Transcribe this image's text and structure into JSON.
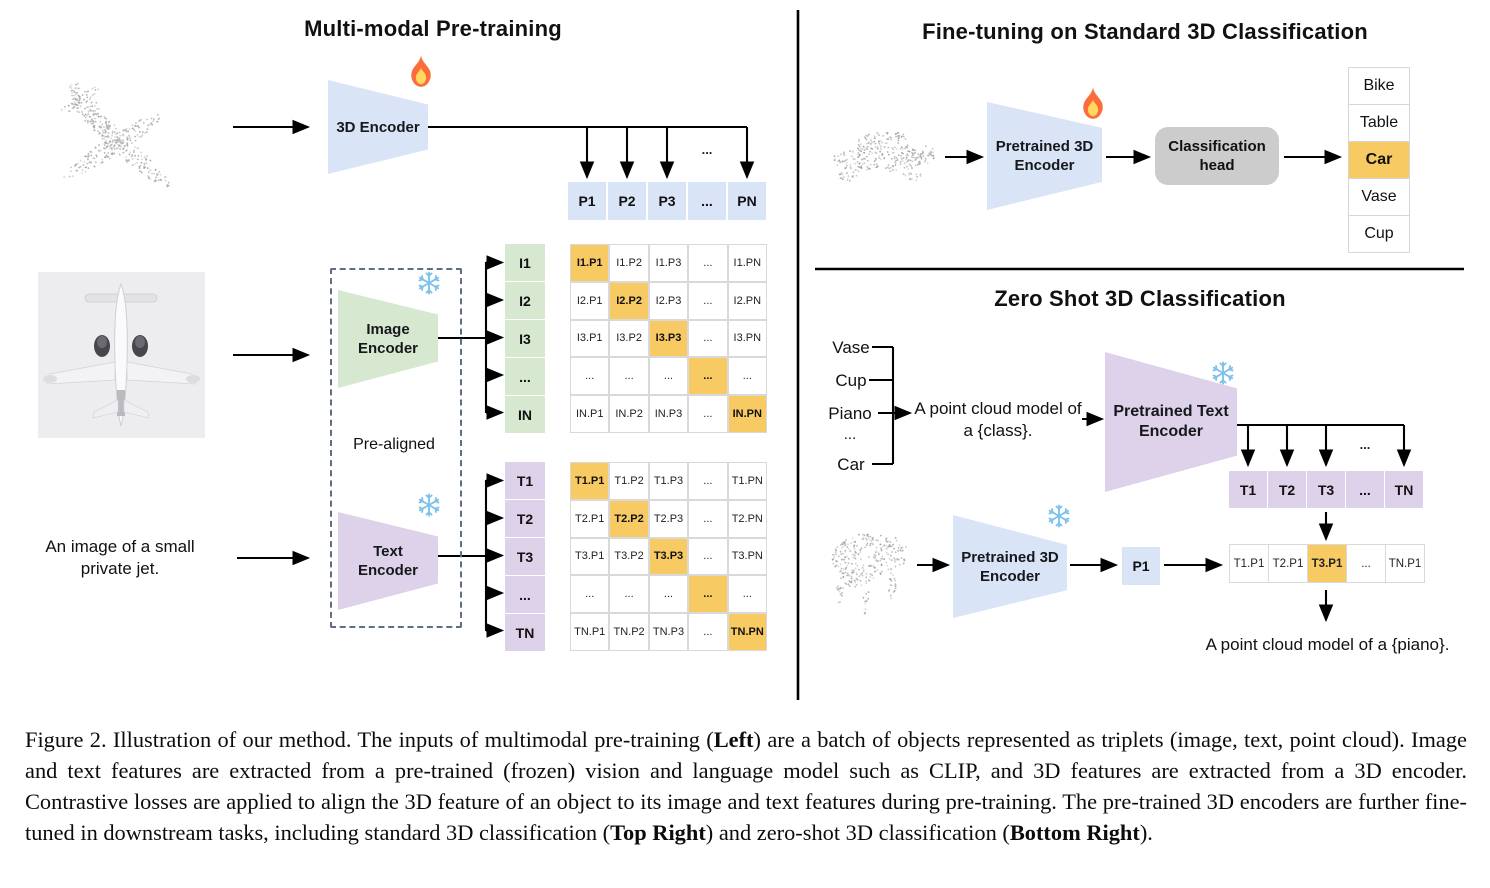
{
  "figure": {
    "left": {
      "title": "Multi-modal Pre-training",
      "point_cloud_input": "airplane point cloud",
      "image_input": "small private jet photo",
      "text_input_lines": [
        "An image of a small",
        "private jet."
      ],
      "encoder_3d": "3D Encoder",
      "image_encoder_lines": [
        "Image",
        "Encoder"
      ],
      "text_encoder_lines": [
        "Text",
        "Encoder"
      ],
      "pre_aligned": "Pre-aligned",
      "ellipsis": "...",
      "p_row": [
        "P1",
        "P2",
        "P3",
        "...",
        "PN"
      ],
      "image_rows": [
        "I1",
        "I2",
        "I3",
        "...",
        "IN"
      ],
      "text_rows": [
        "T1",
        "T2",
        "T3",
        "...",
        "TN"
      ],
      "image_matrix": [
        [
          "I1.P1",
          "I1.P2",
          "I1.P3",
          "...",
          "I1.PN"
        ],
        [
          "I2.P1",
          "I2.P2",
          "I2.P3",
          "...",
          "I2.PN"
        ],
        [
          "I3.P1",
          "I3.P2",
          "I3.P3",
          "...",
          "I3.PN"
        ],
        [
          "...",
          "...",
          "...",
          "...",
          "..."
        ],
        [
          "IN.P1",
          "IN.P2",
          "IN.P3",
          "...",
          "IN.PN"
        ]
      ],
      "text_matrix": [
        [
          "T1.P1",
          "T1.P2",
          "T1.P3",
          "...",
          "T1.PN"
        ],
        [
          "T2.P1",
          "T2.P2",
          "T2.P3",
          "...",
          "T2.PN"
        ],
        [
          "T3.P1",
          "T3.P2",
          "T3.P3",
          "...",
          "T3.PN"
        ],
        [
          "...",
          "...",
          "...",
          "...",
          "..."
        ],
        [
          "TN.P1",
          "TN.P2",
          "TN.P3",
          "...",
          "TN.PN"
        ]
      ]
    },
    "top_right": {
      "title": "Fine-tuning on Standard 3D Classification",
      "point_cloud_input": "car point cloud",
      "encoder_lines": [
        "Pretrained 3D",
        "Encoder"
      ],
      "head_lines": [
        "Classification",
        "head"
      ],
      "classes": [
        "Bike",
        "Table",
        "Car",
        "Vase",
        "Cup"
      ],
      "highlight_index": 2,
      "highlighted_class": "Car"
    },
    "bottom_right": {
      "title": "Zero Shot 3D Classification",
      "classes": [
        "Vase",
        "Cup",
        "Piano",
        "...",
        "Car"
      ],
      "prompt_lines": [
        "A point cloud model of",
        "a {class}."
      ],
      "text_encoder_lines": [
        "Pretrained Text",
        "Encoder"
      ],
      "point_cloud_input": "piano point cloud",
      "encoder_lines": [
        "Pretrained 3D",
        "Encoder"
      ],
      "p1": "P1",
      "t_row": [
        "T1",
        "T2",
        "T3",
        "...",
        "TN"
      ],
      "result_row": [
        "T1.P1",
        "T2.P1",
        "T3.P1",
        "...",
        "TN.P1"
      ],
      "highlight_index": 2,
      "highlighted_result": "T3.P1",
      "result_prompt": "A point cloud model of a {piano}.",
      "ellipsis": "..."
    },
    "icons": {
      "trainable": "flame-icon",
      "frozen": "snowflake-icon"
    },
    "colors": {
      "encoder_blue": "#d9e4f7",
      "encoder_green": "#d7e8d0",
      "encoder_purple": "#ddd2e9",
      "highlight_orange": "#f8ca63",
      "head_gray": "#cccccc"
    }
  },
  "caption": {
    "segments": [
      {
        "t": "Figure 2. Illustration of our method. The inputs of multimodal pre-training (",
        "b": false
      },
      {
        "t": "Left",
        "b": true
      },
      {
        "t": ") are a batch of objects represented as triplets (image, text, point cloud). Image and text features are extracted from a pre-trained (frozen) vision and language model such as CLIP, and 3D features are extracted from a 3D encoder. Contrastive losses are applied to align the 3D feature of an object to its image and text features during pre-training. The pre-trained 3D encoders are further fine-tuned in downstream tasks, including standard 3D classification (",
        "b": false
      },
      {
        "t": "Top Right",
        "b": true
      },
      {
        "t": ") and zero-shot 3D classification (",
        "b": false
      },
      {
        "t": "Bottom Right",
        "b": true
      },
      {
        "t": ").",
        "b": false
      }
    ]
  }
}
